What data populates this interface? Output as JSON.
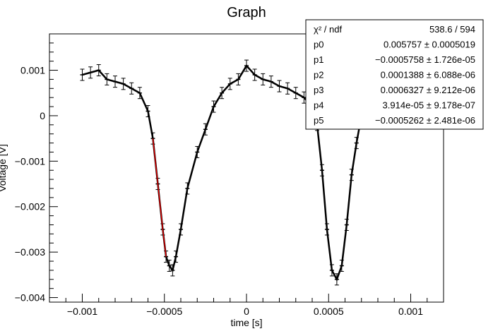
{
  "chart_data": {
    "type": "scatter",
    "title": "Graph",
    "xlabel": "time [s]",
    "ylabel": "Voltage [V]",
    "xlim": [
      -0.0012,
      0.0012
    ],
    "ylim": [
      -0.0041,
      0.0018
    ],
    "x_ticks": [
      {
        "value": -0.001,
        "label": "−0.001"
      },
      {
        "value": -0.0005,
        "label": "−0.0005"
      },
      {
        "value": 0,
        "label": "0"
      },
      {
        "value": 0.0005,
        "label": "0.0005"
      },
      {
        "value": 0.001,
        "label": "0.001"
      }
    ],
    "y_ticks": [
      {
        "value": 0.001,
        "label": "0.001"
      },
      {
        "value": 0,
        "label": "0"
      },
      {
        "value": -0.001,
        "label": "−0.001"
      },
      {
        "value": -0.002,
        "label": "−0.002"
      },
      {
        "value": -0.003,
        "label": "−0.003"
      },
      {
        "value": -0.004,
        "label": "−0.004"
      }
    ],
    "series": [
      {
        "marker": "cross with error bars",
        "color": "#000000",
        "x": [
          -0.001,
          -0.00095,
          -0.0009,
          -0.00085,
          -0.0008,
          -0.00075,
          -0.0007,
          -0.00065,
          -0.0006,
          -0.00057,
          -0.00054,
          -0.00051,
          -0.00049,
          -0.00047,
          -0.00045,
          -0.00043,
          -0.0004,
          -0.00036,
          -0.0003,
          -0.00025,
          -0.0002,
          -0.00015,
          -0.0001,
          -5e-05,
          0,
          5e-05,
          0.0001,
          0.00015,
          0.0002,
          0.00025,
          0.0003,
          0.00035,
          0.0004,
          0.00043,
          0.00046,
          0.00049,
          0.00052,
          0.00055,
          0.00058,
          0.00061,
          0.00064,
          0.00067,
          0.0007
        ],
        "y": [
          0.0009,
          0.00095,
          0.001,
          0.0008,
          0.00075,
          0.0007,
          0.0006,
          0.0005,
          0.0001,
          -0.0005,
          -0.0015,
          -0.0025,
          -0.0031,
          -0.0033,
          -0.0034,
          -0.0031,
          -0.0025,
          -0.0016,
          -0.0008,
          -0.0003,
          0.0002,
          0.0005,
          0.0007,
          0.0008,
          0.0011,
          0.0009,
          0.0008,
          0.00075,
          0.00065,
          0.0006,
          0.0005,
          0.0004,
          0.0002,
          -0.0002,
          -0.0012,
          -0.0025,
          -0.0034,
          -0.0036,
          -0.0033,
          -0.0024,
          -0.0013,
          -0.0006,
          0.0
        ]
      }
    ],
    "fit": {
      "color": "#ff0000",
      "x": [
        -0.00057,
        -0.00054,
        -0.00051,
        -0.00049
      ],
      "y": [
        -0.0005,
        -0.0015,
        -0.0025,
        -0.0031
      ]
    },
    "stats_box": {
      "rows": [
        {
          "name": "χ² / ndf",
          "value": "538.6 / 594"
        },
        {
          "name": "p0",
          "value": "0.005757 ± 0.0005019"
        },
        {
          "name": "p1",
          "value": "−0.0005758 ± 1.726e-05"
        },
        {
          "name": "p2",
          "value": "0.0001388 ± 6.088e-06"
        },
        {
          "name": "p3",
          "value": "0.0006327 ± 9.212e-06"
        },
        {
          "name": "p4",
          "value": "3.914e-05 ± 9.178e-07"
        },
        {
          "name": "p5",
          "value": "−0.0005262 ± 2.481e-06"
        }
      ]
    }
  }
}
